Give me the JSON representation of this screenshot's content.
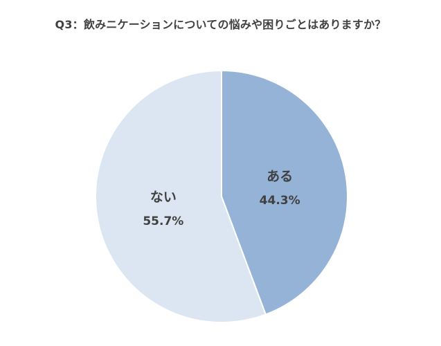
{
  "chart_data": {
    "type": "pie",
    "title": "Q3：飲みニケーションについての悩みや困りごとはありますか？",
    "slices": [
      {
        "label": "ある",
        "value": 44.3,
        "value_label": "44.3%",
        "color": "#95B3D7"
      },
      {
        "label": "ない",
        "value": 55.7,
        "value_label": "55.7%",
        "color": "#DCE6F2"
      }
    ],
    "start_angle": "12 o'clock",
    "direction": "clockwise",
    "legend": "none",
    "data_labels": "inside"
  }
}
